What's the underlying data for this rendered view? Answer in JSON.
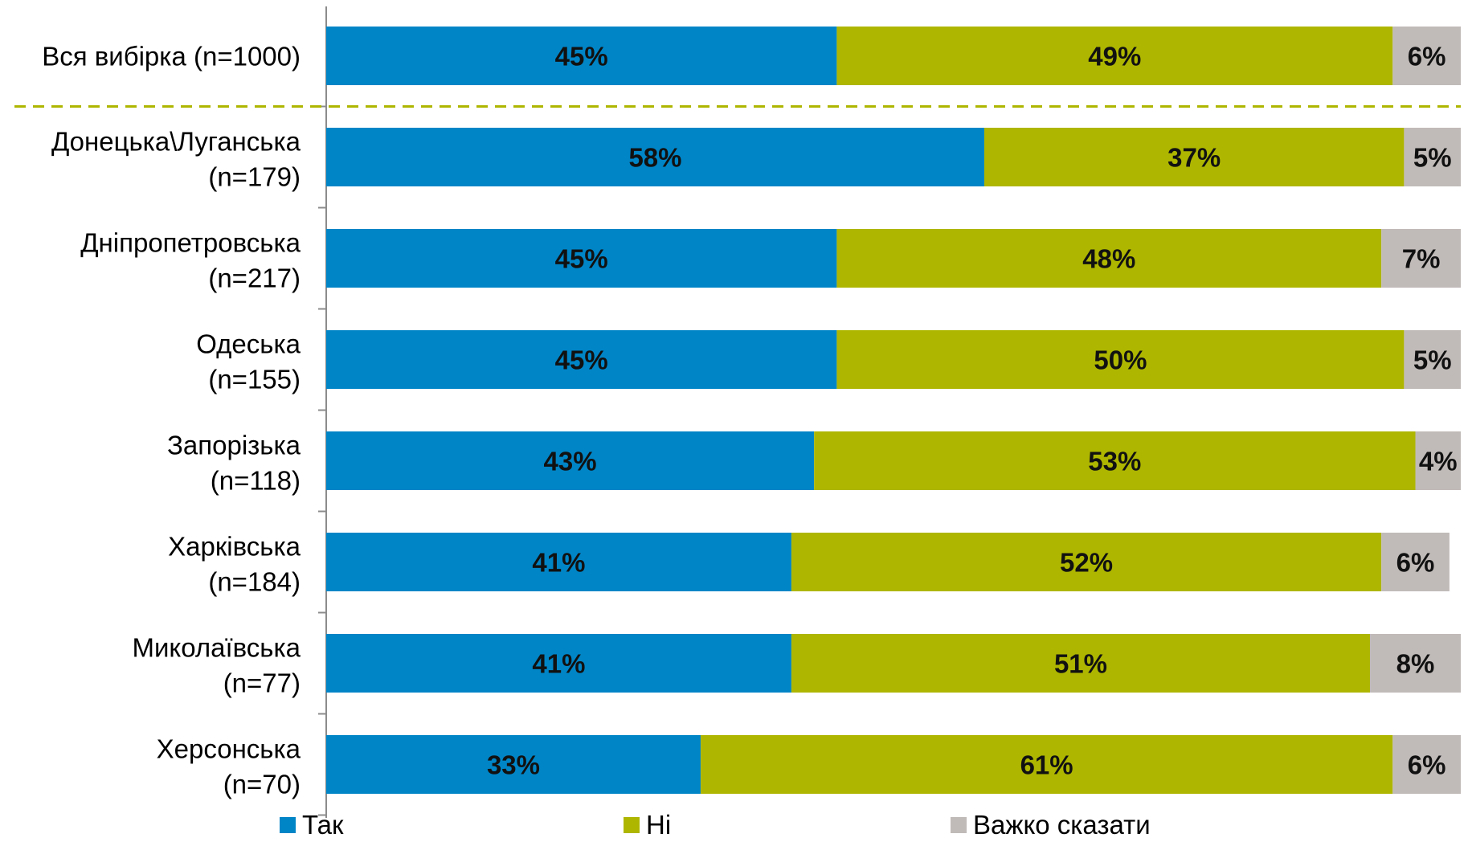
{
  "chart_data": {
    "type": "bar",
    "orientation": "horizontal",
    "stacked": "percent",
    "categories": [
      [
        "Вся вибірка (n=1000)"
      ],
      [
        "Донецька\\Луганська",
        "(n=179)"
      ],
      [
        "Дніпропетровська",
        "(n=217)"
      ],
      [
        "Одеська",
        "(n=155)"
      ],
      [
        "Запорізька",
        "(n=118)"
      ],
      [
        "Харківська",
        "(n=184)"
      ],
      [
        "Миколаївська",
        "(n=77)"
      ],
      [
        "Херсонська",
        "(n=70)"
      ]
    ],
    "series": [
      {
        "name": "Так",
        "color": "#0085C7",
        "values": [
          45,
          58,
          45,
          45,
          43,
          41,
          41,
          33
        ]
      },
      {
        "name": "Ні",
        "color": "#AEB600",
        "values": [
          49,
          37,
          48,
          50,
          53,
          52,
          51,
          61
        ]
      },
      {
        "name": "Важко сказати",
        "color": "#C0BAB8",
        "values": [
          6,
          5,
          7,
          5,
          4,
          6,
          8,
          6
        ]
      }
    ],
    "xlim": [
      0,
      100
    ],
    "grid": false,
    "legend": "bottom",
    "separator_after_category": 0,
    "separator_color": "#AEB600"
  }
}
